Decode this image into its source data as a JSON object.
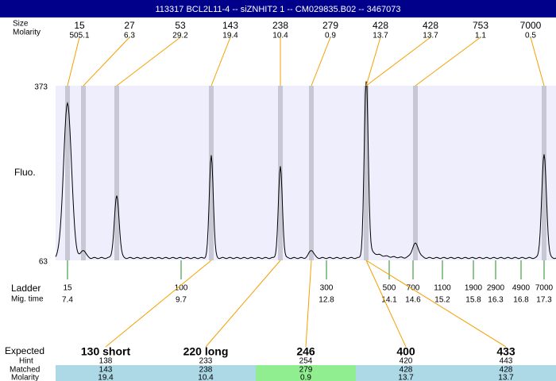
{
  "header": {
    "title": "113317  BCL2L11-4 -- siZNHIT2 1 -- CM029835.B02 -- 3467073"
  },
  "peaks": {
    "size_label": "Size",
    "molarity_label": "Molarity",
    "items": [
      {
        "size": "15",
        "molarity": "505.1"
      },
      {
        "size": "27",
        "molarity": "6.3"
      },
      {
        "size": "53",
        "molarity": "29.2"
      },
      {
        "size": "143",
        "molarity": "19.4"
      },
      {
        "size": "238",
        "molarity": "10.4"
      },
      {
        "size": "279",
        "molarity": "0.9"
      },
      {
        "size": "428",
        "molarity": "13.7"
      },
      {
        "size": "428",
        "molarity": "13.7"
      },
      {
        "size": "753",
        "molarity": "1.1"
      },
      {
        "size": "7000",
        "molarity": "0.5"
      }
    ]
  },
  "axis": {
    "top": "373",
    "bottom": "63",
    "label": "Fluo."
  },
  "ladder": {
    "label": "Ladder",
    "time_label": "Mig. time",
    "items": [
      {
        "size": "15",
        "time": "7.4"
      },
      {
        "size": "100",
        "time": "9.7"
      },
      {
        "size": "300",
        "time": "12.8"
      },
      {
        "size": "500",
        "time": "14.1"
      },
      {
        "size": "700",
        "time": "14.6"
      },
      {
        "size": "1100",
        "time": "15.2"
      },
      {
        "size": "1900",
        "time": "15.8"
      },
      {
        "size": "2900",
        "time": "16.3"
      },
      {
        "size": "4900",
        "time": "16.8"
      },
      {
        "size": "7000",
        "time": "17.3"
      }
    ]
  },
  "expected": {
    "labels": {
      "expected": "Expected",
      "hint": "Hint",
      "matched": "Matched",
      "molarity": "Molarity"
    },
    "columns": [
      {
        "expected": "130 short",
        "hint": "138",
        "matched": "143",
        "molarity": "19.4"
      },
      {
        "expected": "220 long",
        "hint": "233",
        "matched": "238",
        "molarity": "10.4"
      },
      {
        "expected": "246",
        "hint": "254",
        "matched": "279",
        "molarity": "0.9"
      },
      {
        "expected": "400",
        "hint": "420",
        "matched": "428",
        "molarity": "13.7"
      },
      {
        "expected": "433",
        "hint": "443",
        "matched": "428",
        "molarity": "13.7"
      }
    ]
  }
}
